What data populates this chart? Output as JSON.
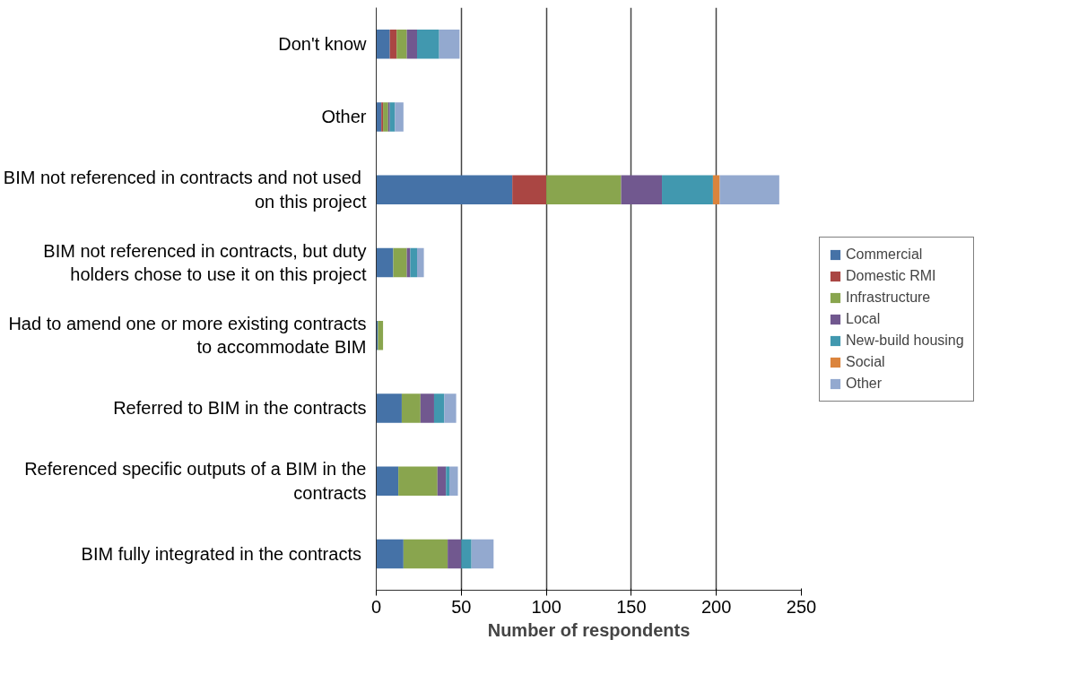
{
  "chart_data": {
    "type": "bar",
    "orientation": "horizontal",
    "stacked": true,
    "xlabel": "Number of respondents",
    "categories": [
      "Don't know",
      "Other",
      "BIM  not referenced in contracts and not used\non this project",
      "BIM not referenced in contracts, but duty\nholders chose to use it on this project",
      "Had to amend one or more existing contracts\nto accommodate BIM",
      "Referred to BIM in the contracts",
      "Referenced specific outputs of a BIM in the\ncontracts",
      "BIM fully integrated  in the contracts"
    ],
    "series": [
      {
        "name": "Commercial",
        "color": "#4572a7",
        "values": [
          8,
          3,
          80,
          10,
          1,
          15,
          13,
          16
        ]
      },
      {
        "name": "Domestic RMI",
        "color": "#aa4643",
        "values": [
          4,
          1,
          20,
          0,
          0,
          0,
          0,
          0
        ]
      },
      {
        "name": "Infrastructure",
        "color": "#89a54e",
        "values": [
          6,
          3,
          44,
          8,
          3,
          11,
          23,
          26
        ]
      },
      {
        "name": "Local",
        "color": "#71588f",
        "values": [
          6,
          1,
          24,
          2,
          0,
          8,
          5,
          8
        ]
      },
      {
        "name": "New-build housing",
        "color": "#4198af",
        "values": [
          13,
          3,
          30,
          4,
          0,
          6,
          2,
          6
        ]
      },
      {
        "name": "Social",
        "color": "#db843d",
        "values": [
          0,
          0,
          4,
          0,
          0,
          0,
          0,
          0
        ]
      },
      {
        "name": "Other",
        "color": "#93a9cf",
        "values": [
          12,
          5,
          35,
          4,
          0,
          7,
          5,
          13
        ]
      }
    ],
    "xlim": [
      0,
      250
    ],
    "xticks": [
      0,
      50,
      100,
      150,
      200,
      250
    ],
    "grid": "x",
    "legend": "right"
  }
}
